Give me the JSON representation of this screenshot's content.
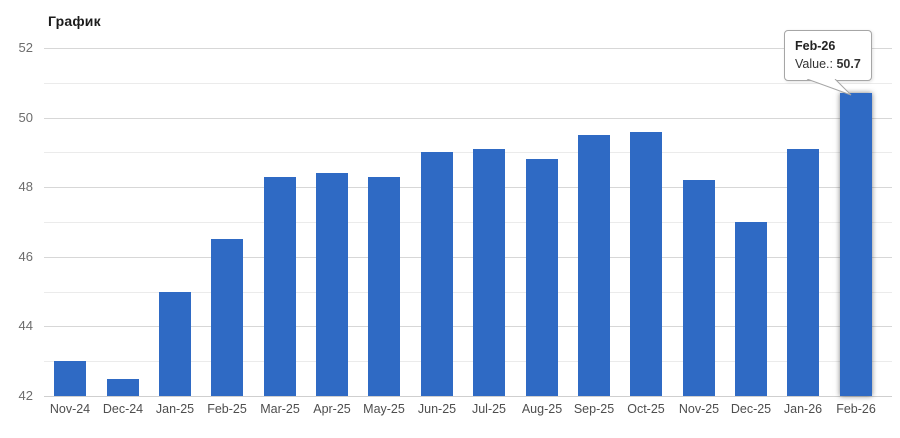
{
  "title": "График",
  "tooltip": {
    "title": "Feb-26",
    "value_label": "Value.:",
    "value": "50.7"
  },
  "colors": {
    "bar": "#2f6ac4",
    "grid_major": "#d7d7d7",
    "grid_minor": "#ebebeb",
    "axis_line": "#cfcfcf",
    "axis_label": "#6d6d6d",
    "x_label": "#4e4e4e",
    "title_text": "#1c1c1c",
    "tooltip_border": "#a6a6a6",
    "tooltip_bg": "#ffffff"
  },
  "chart_data": {
    "type": "bar",
    "title": "График",
    "categories": [
      "Nov-24",
      "Dec-24",
      "Jan-25",
      "Feb-25",
      "Mar-25",
      "Apr-25",
      "May-25",
      "Jun-25",
      "Jul-25",
      "Aug-25",
      "Sep-25",
      "Oct-25",
      "Nov-25",
      "Dec-25",
      "Jan-26",
      "Feb-26"
    ],
    "values": [
      43.0,
      42.5,
      45.0,
      46.5,
      48.3,
      48.4,
      48.3,
      49.0,
      49.1,
      48.8,
      49.5,
      49.6,
      48.2,
      47.0,
      49.1,
      50.7
    ],
    "xlabel": "",
    "ylabel": "",
    "ylim": [
      42,
      52
    ],
    "yticks_labeled": [
      52,
      50,
      48,
      46,
      44,
      42
    ],
    "yticks_minor": [
      51,
      49,
      47,
      45,
      43
    ],
    "grid": true,
    "legend": false,
    "highlighted_index": 15,
    "highlighted_category": "Feb-26",
    "highlighted_value": 50.7
  }
}
